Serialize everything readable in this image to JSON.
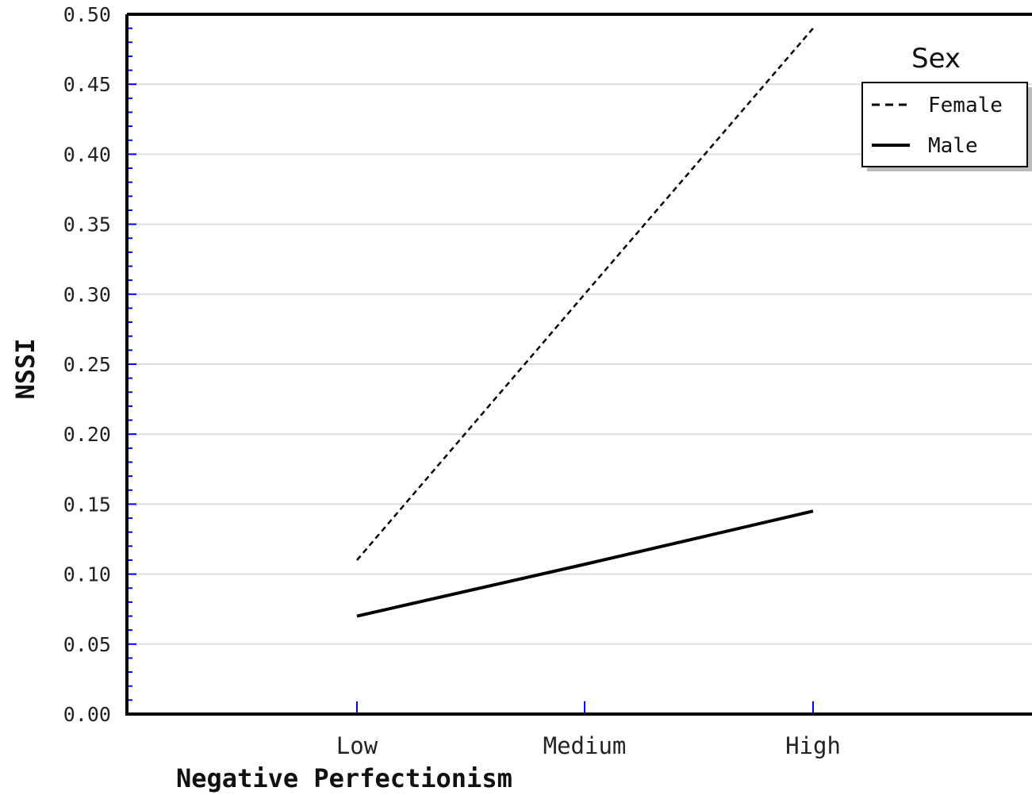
{
  "chart_data": {
    "type": "line",
    "title": "",
    "xlabel": "Negative Perfectionism",
    "ylabel": "NSSI",
    "categories": [
      "Low",
      "Medium",
      "High"
    ],
    "ylim": [
      0,
      0.5
    ],
    "yticks": [
      "0.00",
      "0.05",
      "0.10",
      "0.15",
      "0.20",
      "0.25",
      "0.30",
      "0.35",
      "0.40",
      "0.45",
      "0.50"
    ],
    "grid": true,
    "legend": {
      "title": "Sex",
      "placement": "top-right"
    },
    "series": [
      {
        "name": "Female",
        "style": "dashed",
        "values": [
          0.11,
          0.3,
          0.49
        ]
      },
      {
        "name": "Male",
        "style": "solid",
        "values": [
          0.07,
          0.107,
          0.145
        ]
      }
    ]
  },
  "colors": {
    "axis": "#000000",
    "tick_marks": "#0000ff",
    "grid": "#dddddd",
    "series": "#000000"
  }
}
